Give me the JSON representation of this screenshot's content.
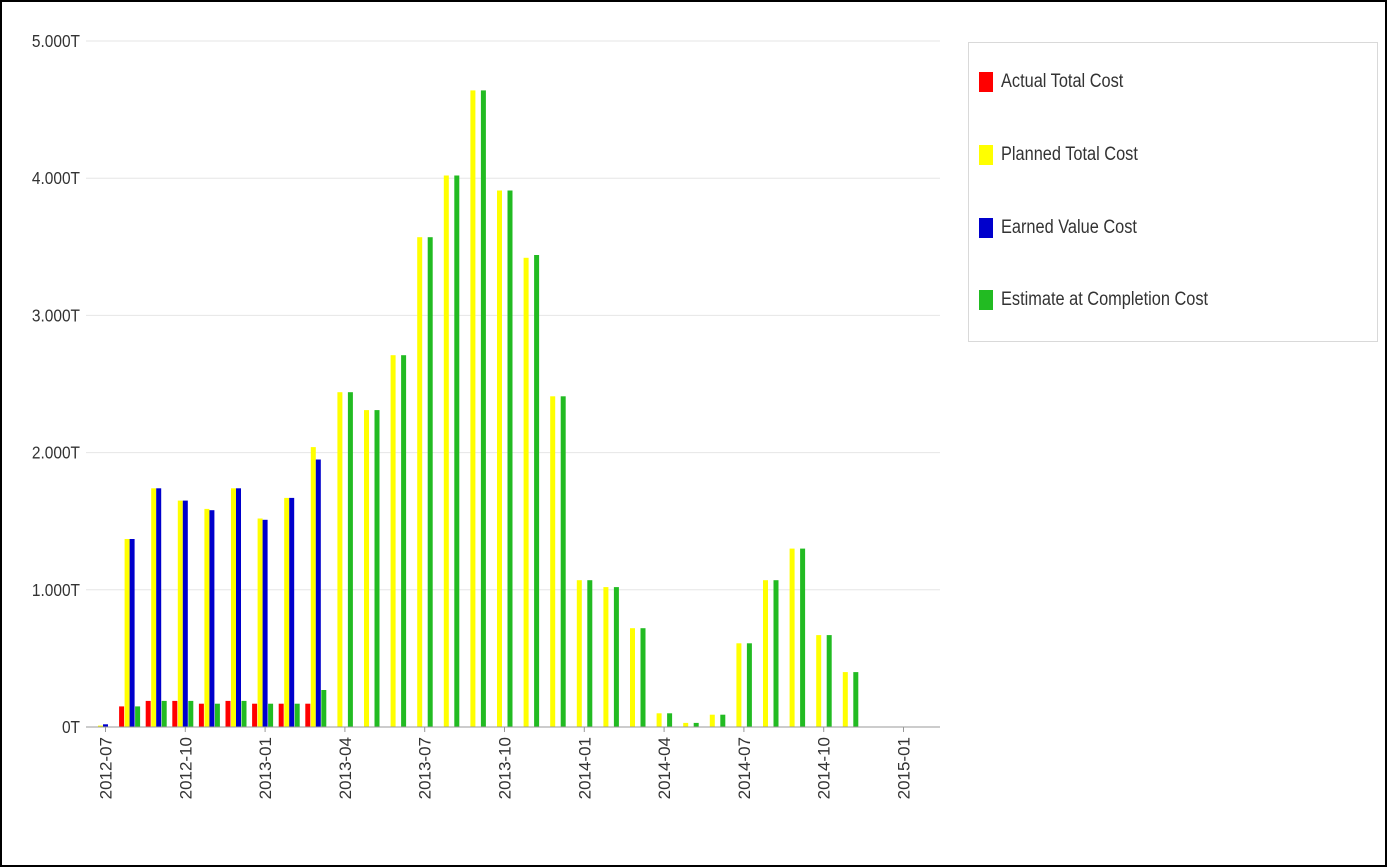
{
  "chart_data": {
    "type": "bar",
    "title": "",
    "xlabel": "",
    "ylabel": "",
    "ylim": [
      0,
      5.0
    ],
    "y_ticks": [
      "0T",
      "1.000T",
      "2.000T",
      "3.000T",
      "4.000T",
      "5.000T"
    ],
    "x_ticks": [
      {
        "label": "2012-07",
        "index": 0
      },
      {
        "label": "2012-10",
        "index": 3
      },
      {
        "label": "2013-01",
        "index": 6
      },
      {
        "label": "2013-04",
        "index": 9
      },
      {
        "label": "2013-07",
        "index": 12
      },
      {
        "label": "2013-10",
        "index": 15
      },
      {
        "label": "2014-01",
        "index": 18
      },
      {
        "label": "2014-04",
        "index": 21
      },
      {
        "label": "2014-07",
        "index": 24
      },
      {
        "label": "2014-10",
        "index": 27
      },
      {
        "label": "2015-01",
        "index": 30
      }
    ],
    "categories": [
      "2012-07",
      "2012-08",
      "2012-09",
      "2012-10",
      "2012-11",
      "2012-12",
      "2013-01",
      "2013-02",
      "2013-03",
      "2013-04",
      "2013-05",
      "2013-06",
      "2013-07",
      "2013-08",
      "2013-09",
      "2013-10",
      "2013-11",
      "2013-12",
      "2014-01",
      "2014-02",
      "2014-03",
      "2014-04",
      "2014-05",
      "2014-06",
      "2014-07",
      "2014-08",
      "2014-09",
      "2014-10",
      "2014-11",
      "2014-12",
      "2015-01"
    ],
    "legend_position": "right",
    "grid": true,
    "series": [
      {
        "name": "Actual Total Cost",
        "color": "#ff0000",
        "values": [
          0,
          0.15,
          0.19,
          0.19,
          0.17,
          0.19,
          0.17,
          0.17,
          0.17,
          0,
          0,
          0,
          0,
          0,
          0,
          0,
          0,
          0,
          0,
          0,
          0,
          0,
          0,
          0,
          0,
          0,
          0,
          0,
          0,
          0,
          0
        ]
      },
      {
        "name": "Planned Total Cost",
        "color": "#ffff00",
        "values": [
          0.01,
          1.37,
          1.74,
          1.65,
          1.59,
          1.74,
          1.52,
          1.67,
          2.04,
          2.44,
          2.31,
          2.71,
          3.57,
          4.02,
          4.64,
          3.91,
          3.42,
          2.41,
          1.07,
          1.02,
          0.72,
          0.1,
          0.03,
          0.09,
          0.61,
          1.07,
          1.3,
          0.67,
          0.4,
          0,
          0
        ]
      },
      {
        "name": "Earned Value Cost",
        "color": "#0000cc",
        "values": [
          0.02,
          1.37,
          1.74,
          1.65,
          1.58,
          1.74,
          1.51,
          1.67,
          1.95,
          0,
          0,
          0,
          0,
          0,
          0,
          0,
          0,
          0,
          0,
          0,
          0,
          0,
          0,
          0,
          0,
          0,
          0,
          0,
          0,
          0,
          0
        ]
      },
      {
        "name": "Estimate at Completion Cost",
        "color": "#22bb22",
        "values": [
          0,
          0.15,
          0.19,
          0.19,
          0.17,
          0.19,
          0.17,
          0.17,
          0.27,
          2.44,
          2.31,
          2.71,
          3.57,
          4.02,
          4.64,
          3.91,
          3.44,
          2.41,
          1.07,
          1.02,
          0.72,
          0.1,
          0.03,
          0.09,
          0.61,
          1.07,
          1.3,
          0.67,
          0.4,
          0,
          0
        ]
      }
    ]
  }
}
